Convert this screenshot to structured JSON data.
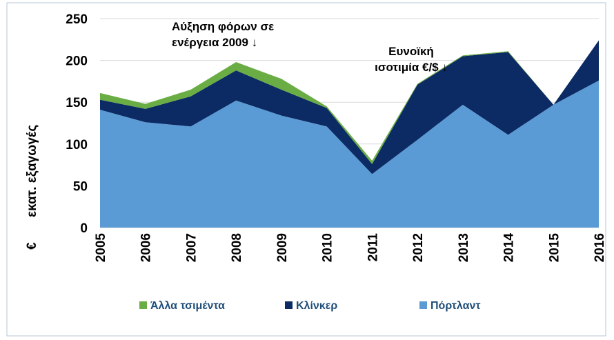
{
  "chart_data": {
    "type": "stacked-area",
    "y_label_unit": "€",
    "y_label": "εκατ. εξαγωγές",
    "categories": [
      "2005",
      "2006",
      "2007",
      "2008",
      "2009",
      "2010",
      "2011",
      "2012",
      "2013",
      "2014",
      "2015",
      "2016"
    ],
    "series": [
      {
        "name": "Άλλα τσιμέντα",
        "color": "#6aad45",
        "values": [
          8,
          6,
          8,
          10,
          13,
          2,
          4,
          1,
          1,
          1,
          0,
          0
        ]
      },
      {
        "name": "Κλίνκερ",
        "color": "#0c2a63",
        "values": [
          12,
          16,
          36,
          36,
          31,
          22,
          12,
          66,
          58,
          99,
          0,
          48
        ]
      },
      {
        "name": "Πόρτλαντ",
        "color": "#5b9bd5",
        "values": [
          141,
          126,
          121,
          152,
          134,
          121,
          64,
          105,
          147,
          111,
          147,
          176
        ]
      }
    ],
    "ylim": [
      0,
      250
    ],
    "yticks": [
      0,
      50,
      100,
      150,
      200,
      250
    ],
    "grid": true,
    "annotations": [
      {
        "lines": [
          "Αύξηση φόρων σε",
          "ενέργεια   2009 ↓"
        ],
        "category": "2008"
      },
      {
        "lines": [
          "Ευνοϊκή",
          "ισοτιμία €/$ ↓"
        ],
        "category": "2012"
      }
    ],
    "legend": "bottom"
  }
}
